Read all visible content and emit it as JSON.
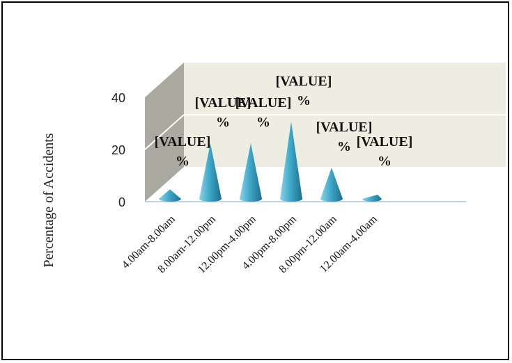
{
  "chart_data": {
    "type": "bar",
    "bar_shape": "cone",
    "categories": [
      "4.00am-8.00am",
      "8.00am-12.00pm",
      "12.00pm-4.00pm",
      "4.00pm-8.00pm",
      "8.00pm-12.00am",
      "12.00am-4.00am"
    ],
    "values": [
      3,
      20,
      20,
      28,
      11,
      1
    ],
    "data_labels": [
      "[VALUE]\n%",
      "[VALUE]\n%",
      "[VALUE]\n%",
      "[VALUE]\n%",
      "[VALUE]\n%",
      "[VALUE]\n%"
    ],
    "title": "",
    "xlabel": "",
    "ylabel": "Percentage of Accidents",
    "ylim": [
      0,
      40
    ],
    "yticks": [
      0,
      20,
      40
    ],
    "grid": true,
    "legend": "none",
    "colors": {
      "cone_light": "#8fd3e6",
      "cone_mid": "#3fa9c9",
      "cone_dark": "#1e6f8e",
      "back_wall": "#eeede1",
      "side_wall": "#a9a9a0",
      "floor_line": "#bcd4ea",
      "grid_line": "#ffffff"
    }
  }
}
